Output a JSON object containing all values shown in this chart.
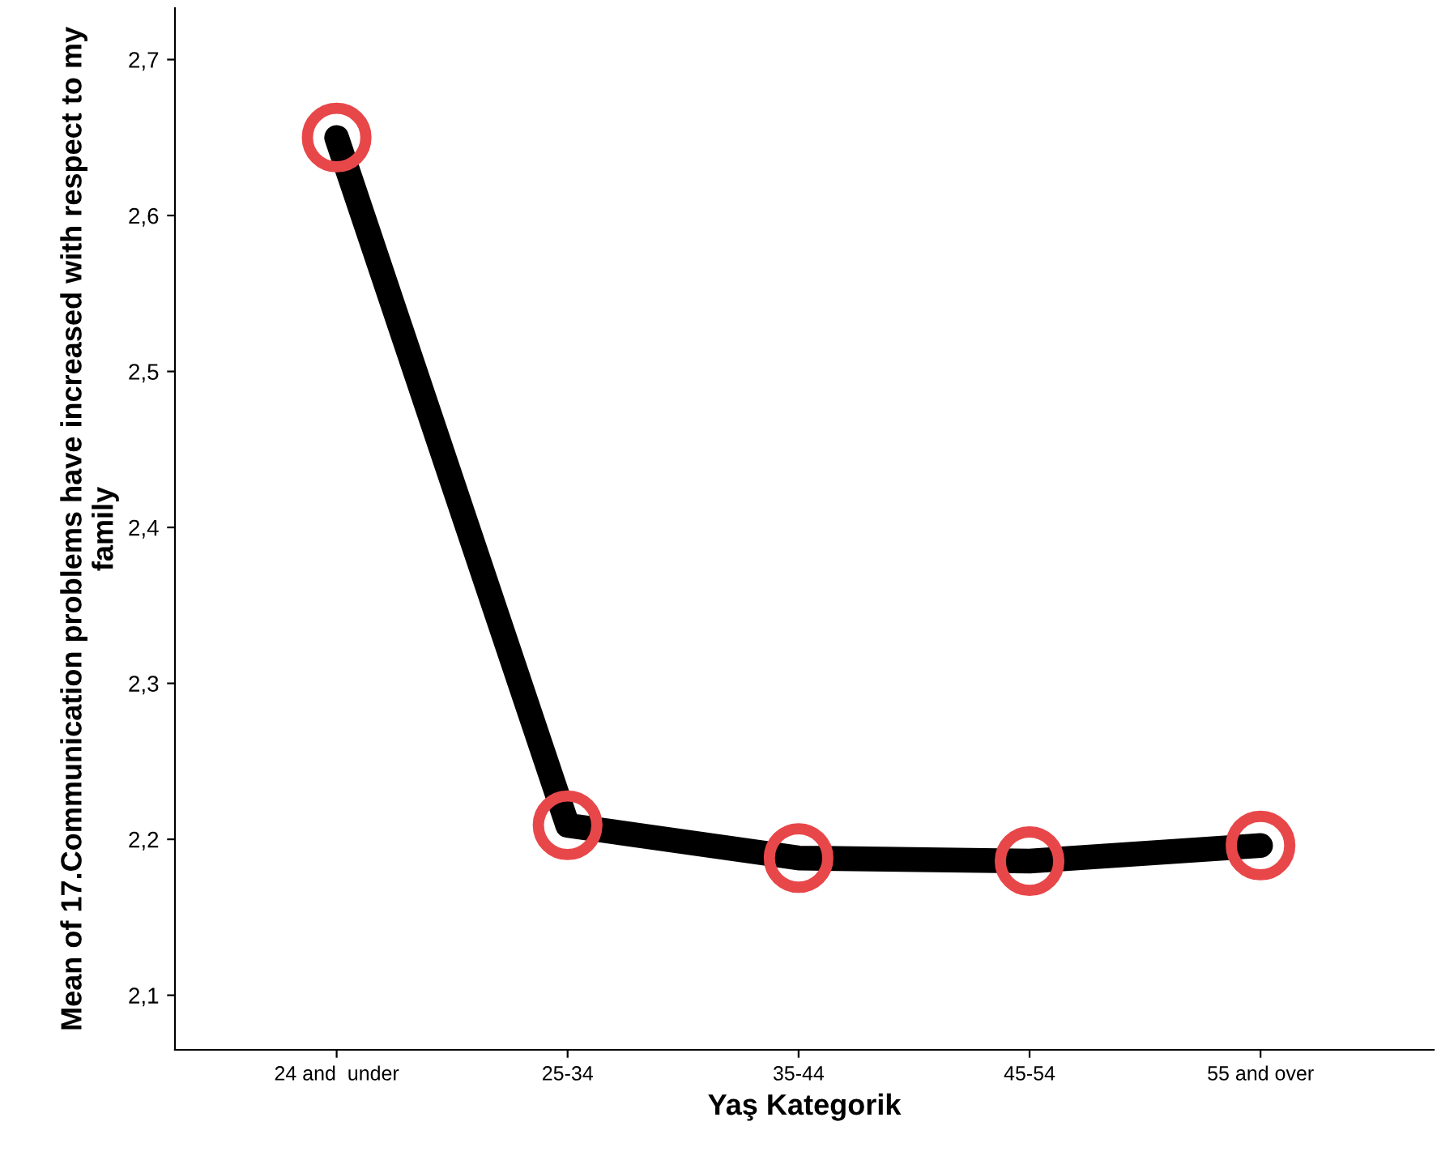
{
  "chart_data": {
    "type": "line",
    "xlabel": "Yaş Kategorik",
    "ylabel": "Mean of 17.Communication problems have increased with respect to my family",
    "categories": [
      "24 and  under",
      "25-34",
      "35-44",
      "45-54",
      "55 and over"
    ],
    "series": [
      {
        "color": "#000000",
        "colors": [
          "#e8474a",
          "#e8474a",
          "#e8474a",
          "#e8474a",
          "#e8474a"
        ],
        "values": [
          2.65,
          2.209,
          2.188,
          2.186,
          2.196
        ]
      }
    ],
    "ylim": [
      2.065,
      2.733
    ],
    "yticks": [
      {
        "value": 2.1,
        "label": "2,1"
      },
      {
        "value": 2.2,
        "label": "2,2"
      },
      {
        "value": 2.3,
        "label": "2,3"
      },
      {
        "value": 2.4,
        "label": "2,4"
      },
      {
        "value": 2.5,
        "label": "2,5"
      },
      {
        "value": 2.6,
        "label": "2,6"
      },
      {
        "value": 2.7,
        "label": "2,7"
      }
    ],
    "marker": "circle",
    "line_style": "solid",
    "grid": false
  }
}
